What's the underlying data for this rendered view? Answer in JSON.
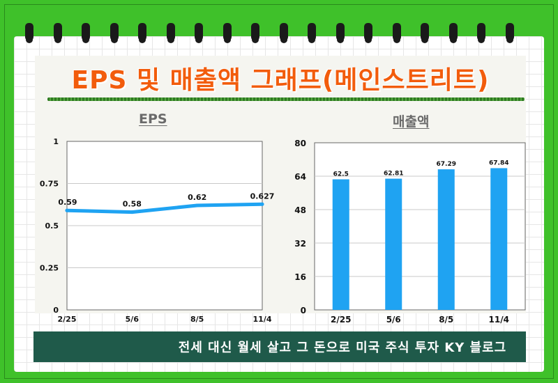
{
  "page": {
    "title": "EPS 및 매출액 그래프(메인스트리트)",
    "footer": "전세 대신 월세 살고 그 돈으로 미국 주식 투자 KY 블로그"
  },
  "colors": {
    "background": "#3fc12a",
    "title": "#f25c0c",
    "series": "#1fa3f2",
    "footer": "#1f5a4a"
  },
  "chart_data": [
    {
      "type": "line",
      "title": "EPS",
      "categories": [
        "2/25",
        "5/6",
        "8/5",
        "11/4"
      ],
      "values": [
        0.59,
        0.58,
        0.62,
        0.627
      ],
      "data_labels": [
        "0.59",
        "0.58",
        "0.62",
        "0.627"
      ],
      "ylim": [
        0,
        1
      ],
      "yticks": [
        0,
        0.25,
        0.5,
        0.75,
        1
      ],
      "ytick_labels": [
        "0",
        "0.25",
        "0.5",
        "0.75",
        "1"
      ],
      "grid": true
    },
    {
      "type": "bar",
      "title": "매출액",
      "categories": [
        "2/25",
        "5/6",
        "8/5",
        "11/4"
      ],
      "values": [
        62.5,
        62.81,
        67.29,
        67.84
      ],
      "data_labels": [
        "62.5",
        "62.81",
        "67.29",
        "67.84"
      ],
      "ylim": [
        0,
        80
      ],
      "yticks": [
        0,
        16,
        32,
        48,
        64,
        80
      ],
      "ytick_labels": [
        "0",
        "16",
        "32",
        "48",
        "64",
        "80"
      ],
      "grid": true
    }
  ]
}
